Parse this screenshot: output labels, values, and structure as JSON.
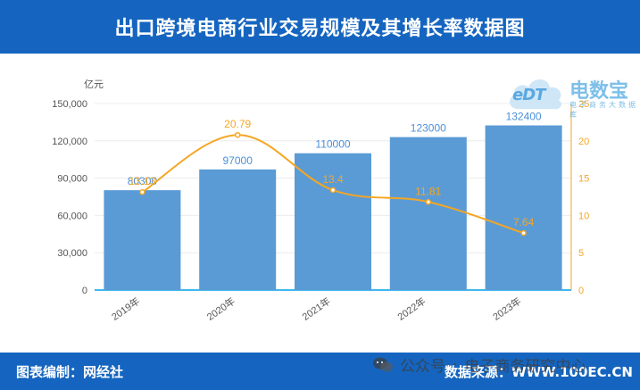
{
  "header": {
    "title": "出口跨境电商行业交易规模及其增长率数据图"
  },
  "logo": {
    "mark": "eDT",
    "brand": "电数宝",
    "sub": "电子商务大数据库"
  },
  "footer": {
    "left": "图表编制：网经社",
    "right": "数据来源：WWW.100EC.CN"
  },
  "watermark": {
    "account_label": "公众号",
    "account_name": "电子商务研究中心",
    "icon": "wechat-icon"
  },
  "colors": {
    "header_bg": "#1565c0",
    "bar": "#5b9bd5",
    "line": "#f5a623",
    "axis_right": "#f5a623",
    "axis_bottom": "#00a0e9"
  },
  "chart_data": {
    "type": "bar",
    "categories": [
      "2019年",
      "2020年",
      "2021年",
      "2022年",
      "2023年"
    ],
    "series": [
      {
        "type": "bar",
        "values": [
          80300,
          97000,
          110000,
          123000,
          132400
        ],
        "labels": [
          "80300",
          "97000",
          "110000",
          "123000",
          "132400"
        ]
      },
      {
        "type": "line",
        "values": [
          13.13,
          20.79,
          13.4,
          11.81,
          7.64
        ],
        "labels": [
          "13.13",
          "20.79",
          "13.4",
          "11.81",
          "7.64"
        ]
      }
    ],
    "ylabel": "亿元",
    "ylim": [
      0,
      150000
    ],
    "yticks": [
      "0",
      "30,000",
      "60,000",
      "90,000",
      "120,000",
      "150,000"
    ],
    "ytick_values": [
      0,
      30000,
      60000,
      90000,
      120000,
      150000
    ],
    "y2lim": [
      0,
      25
    ],
    "y2ticks": [
      "0",
      "5",
      "10",
      "15",
      "20",
      "25"
    ],
    "y2tick_values": [
      0,
      5,
      10,
      15,
      20,
      25
    ],
    "grid": true
  }
}
